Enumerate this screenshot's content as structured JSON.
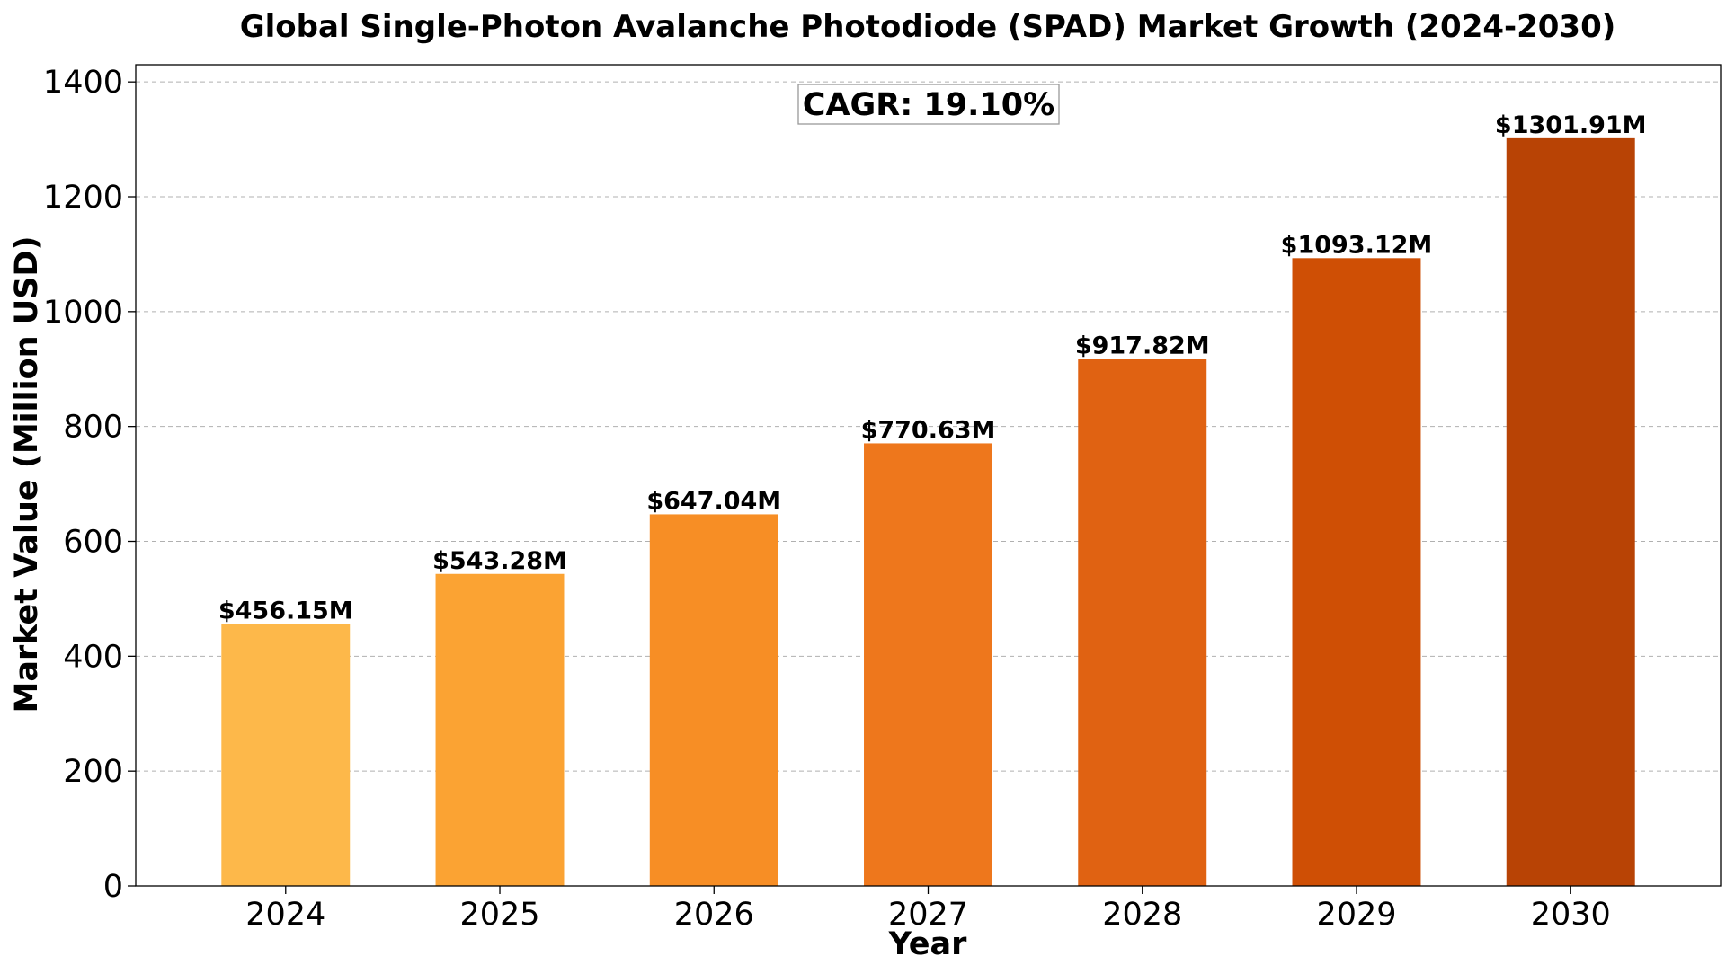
{
  "chart_data": {
    "type": "bar",
    "title": "Global Single-Photon Avalanche Photodiode (SPAD) Market Growth (2024-2030)",
    "xlabel": "Year",
    "ylabel": "Market Value (Million USD)",
    "categories": [
      "2024",
      "2025",
      "2026",
      "2027",
      "2028",
      "2029",
      "2030"
    ],
    "values": [
      456.15,
      543.28,
      647.04,
      770.63,
      917.82,
      1093.12,
      1301.91
    ],
    "value_labels": [
      "$456.15M",
      "$543.28M",
      "$647.04M",
      "$770.63M",
      "$917.82M",
      "$1093.12M",
      "$1301.91M"
    ],
    "bar_colors": [
      "#FDB84A",
      "#FBA333",
      "#F78E25",
      "#EE771C",
      "#E06212",
      "#CF4F05",
      "#B84305"
    ],
    "ylim": [
      0,
      1430
    ],
    "yticks": [
      0,
      200,
      400,
      600,
      800,
      1000,
      1200,
      1400
    ],
    "grid": true,
    "grid_axis": "y",
    "annotation": "CAGR: 19.10%",
    "annotation_placement": "top-center"
  }
}
